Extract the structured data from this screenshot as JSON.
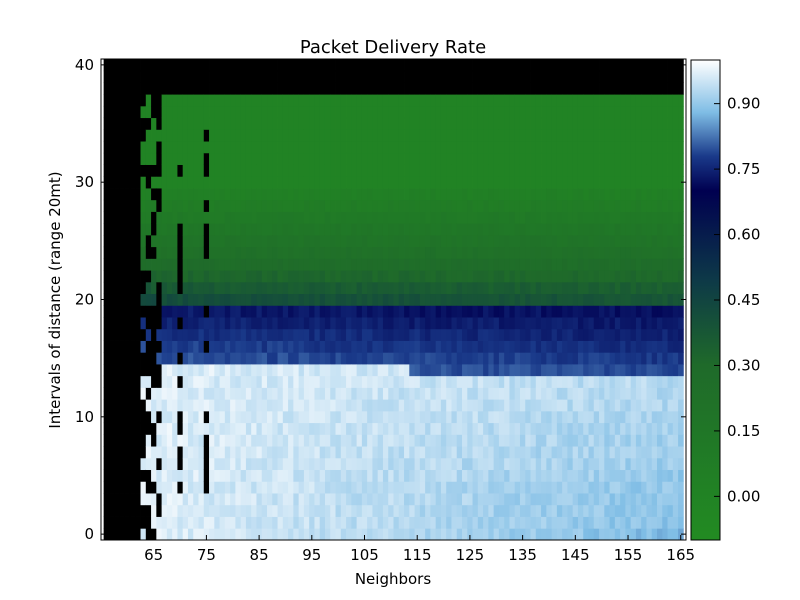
{
  "chart_data": {
    "type": "heatmap",
    "title": "Packet Delivery Rate",
    "xlabel": "Neighbors",
    "ylabel": "Intervals of distance (range 20mt)",
    "x_ticks": [
      65,
      75,
      85,
      95,
      105,
      115,
      125,
      135,
      145,
      155,
      165
    ],
    "y_ticks": [
      0,
      10,
      20,
      30,
      40
    ],
    "xlim": [
      55,
      166
    ],
    "ylim": [
      -0.5,
      40.5
    ],
    "grid": false,
    "colormap": {
      "name": "green-navy-lightblue",
      "vmin": -0.1,
      "vmax": 1.0,
      "ticks": [
        "0.00",
        "0.15",
        "0.30",
        "0.45",
        "0.60",
        "0.75",
        "0.90"
      ],
      "stops": [
        {
          "value": -0.1,
          "color": "#228b22"
        },
        {
          "value": 0.3,
          "color": "#1f6a2a"
        },
        {
          "value": 0.5,
          "color": "#0d3848"
        },
        {
          "value": 0.7,
          "color": "#000050"
        },
        {
          "value": 0.78,
          "color": "#1a3a8a"
        },
        {
          "value": 0.88,
          "color": "#7fbde5"
        },
        {
          "value": 1.0,
          "color": "#ffffff"
        }
      ]
    },
    "masked_color": "#000000",
    "description_of_values": {
      "bands": [
        {
          "y_range": [
            38,
            40
          ],
          "value": "no data"
        },
        {
          "y_range": [
            30,
            37
          ],
          "value": 0.0
        },
        {
          "y_range": [
            24,
            30
          ],
          "value": 0.1
        },
        {
          "y_range": [
            20,
            24
          ],
          "value": 0.45
        },
        {
          "y_range": [
            15,
            20
          ],
          "value": 0.75
        },
        {
          "y_range": [
            0,
            15
          ],
          "value": 0.93
        }
      ]
    }
  }
}
